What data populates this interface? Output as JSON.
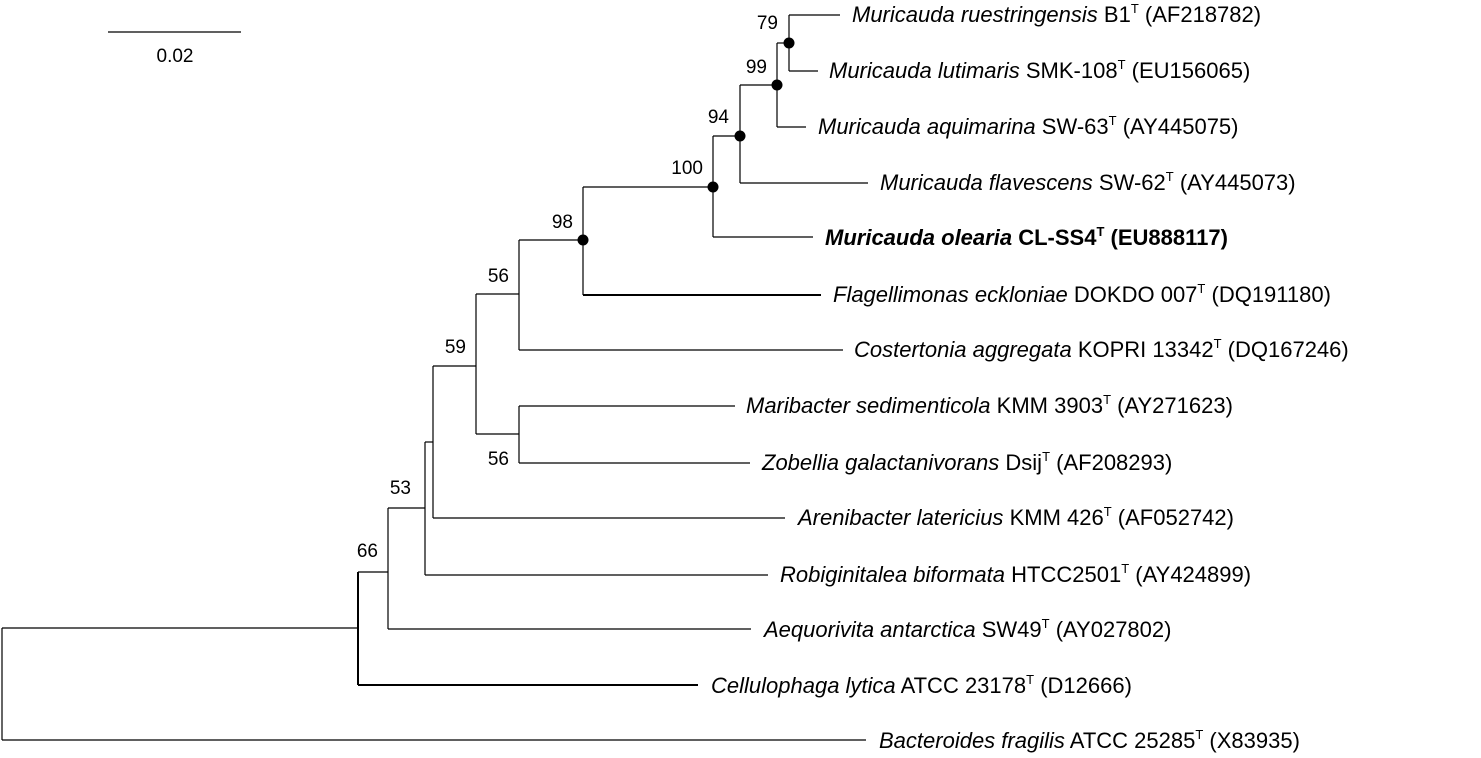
{
  "scale_bar": {
    "label": "0.02"
  },
  "taxa": [
    {
      "id": "ruestringensis",
      "species": "Muricauda ruestringensis",
      "strain": "B1",
      "type_mark": "T",
      "accession": "(AF218782)",
      "bold": false
    },
    {
      "id": "lutimaris",
      "species": "Muricauda lutimaris",
      "strain": "SMK-108",
      "type_mark": "T",
      "accession": "(EU156065)",
      "bold": false
    },
    {
      "id": "aquimarina",
      "species": "Muricauda aquimarina",
      "strain": "SW-63",
      "type_mark": "T",
      "accession": "(AY445075)",
      "bold": false
    },
    {
      "id": "flavescens",
      "species": "Muricauda flavescens",
      "strain": "SW-62",
      "type_mark": "T",
      "accession": "(AY445073)",
      "bold": false
    },
    {
      "id": "olearia",
      "species": "Muricauda olearia",
      "strain": "CL-SS4",
      "type_mark": "T",
      "accession": "(EU888117)",
      "bold": true
    },
    {
      "id": "eckloniae",
      "species": "Flagellimonas eckloniae",
      "strain": "DOKDO 007",
      "type_mark": "T",
      "accession": "(DQ191180)",
      "bold": false
    },
    {
      "id": "costertonia",
      "species": "Costertonia aggregata",
      "strain": "KOPRI 13342",
      "type_mark": "T",
      "accession": "(DQ167246)",
      "bold": false
    },
    {
      "id": "maribacter",
      "species": "Maribacter sedimenticola",
      "strain": "KMM 3903",
      "type_mark": "T",
      "accession": "(AY271623)",
      "bold": false
    },
    {
      "id": "zobellia",
      "species": "Zobellia galactanivorans",
      "strain": "Dsij",
      "type_mark": "T",
      "accession": "(AF208293)",
      "bold": false
    },
    {
      "id": "arenibacter",
      "species": "Arenibacter latericius",
      "strain": "KMM 426",
      "type_mark": "T",
      "accession": "(AF052742)",
      "bold": false
    },
    {
      "id": "robiginitalea",
      "species": "Robiginitalea biformata",
      "strain": "HTCC2501",
      "type_mark": "T",
      "accession": "(AY424899)",
      "bold": false
    },
    {
      "id": "aequorivita",
      "species": "Aequorivita antarctica",
      "strain": "SW49",
      "type_mark": "T",
      "accession": "(AY027802)",
      "bold": false
    },
    {
      "id": "cellulophaga",
      "species": "Cellulophaga lytica",
      "strain": "ATCC 23178",
      "type_mark": "T",
      "accession": "(D12666)",
      "bold": false
    },
    {
      "id": "bacteroides",
      "species": "Bacteroides fragilis",
      "strain": "ATCC 25285",
      "type_mark": "T",
      "accession": "(X83935)",
      "bold": false
    }
  ],
  "bootstrap": [
    {
      "id": "n79",
      "value": "79"
    },
    {
      "id": "n99",
      "value": "99"
    },
    {
      "id": "n94",
      "value": "94"
    },
    {
      "id": "n100",
      "value": "100"
    },
    {
      "id": "n98",
      "value": "98"
    },
    {
      "id": "n56a",
      "value": "56"
    },
    {
      "id": "n56b",
      "value": "56"
    },
    {
      "id": "n59",
      "value": "59"
    },
    {
      "id": "n53",
      "value": "53"
    },
    {
      "id": "n66",
      "value": "66"
    }
  ]
}
